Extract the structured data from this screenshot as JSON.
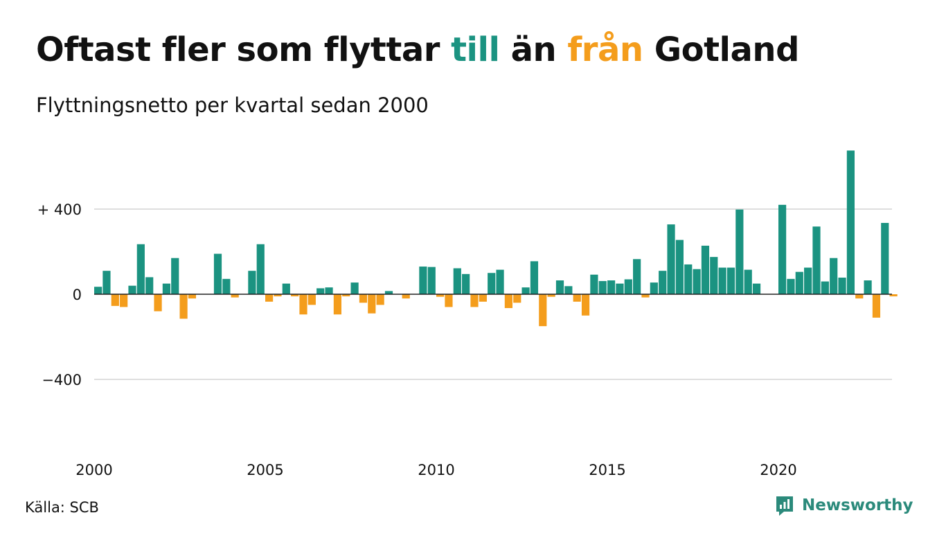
{
  "title": {
    "before": "Oftast fler som flyttar ",
    "word_till": "till",
    "middle": " än ",
    "word_fran": "från",
    "after": " Gotland"
  },
  "subtitle": "Flyttningsnetto per kvartal sedan 2000",
  "source": "Källa: SCB",
  "brand": "Newsworthy",
  "colors": {
    "positive": "#1b9381",
    "negative": "#f49d1c",
    "brand": "#2b8a7b",
    "grid": "#dedede",
    "zero": "#222222"
  },
  "chart_data": {
    "type": "bar",
    "x_start": "2000 Q1",
    "x_ticks": [
      "2000",
      "2005",
      "2010",
      "2015",
      "2020"
    ],
    "y_ticks": [
      {
        "value": 400,
        "label": "+ 400"
      },
      {
        "value": 0,
        "label": "0"
      },
      {
        "value": -400,
        "label": "−400"
      }
    ],
    "ylim": [
      -650,
      700
    ],
    "values": [
      35,
      110,
      -55,
      -60,
      40,
      235,
      80,
      -80,
      50,
      170,
      -115,
      -20,
      0,
      0,
      190,
      72,
      -15,
      0,
      110,
      235,
      -35,
      -10,
      50,
      -10,
      -95,
      -50,
      28,
      32,
      -95,
      -10,
      55,
      -40,
      -90,
      -50,
      15,
      0,
      -20,
      0,
      130,
      128,
      -12,
      -60,
      122,
      95,
      -60,
      -35,
      100,
      115,
      -65,
      -40,
      32,
      155,
      -150,
      -12,
      65,
      38,
      -35,
      -100,
      92,
      62,
      65,
      50,
      70,
      165,
      -15,
      55,
      110,
      328,
      255,
      140,
      118,
      228,
      175,
      125,
      125,
      398,
      115,
      50,
      0,
      0,
      420,
      72,
      105,
      125,
      318,
      60,
      170,
      78,
      675,
      -20,
      65,
      -110,
      335,
      -10
    ]
  }
}
